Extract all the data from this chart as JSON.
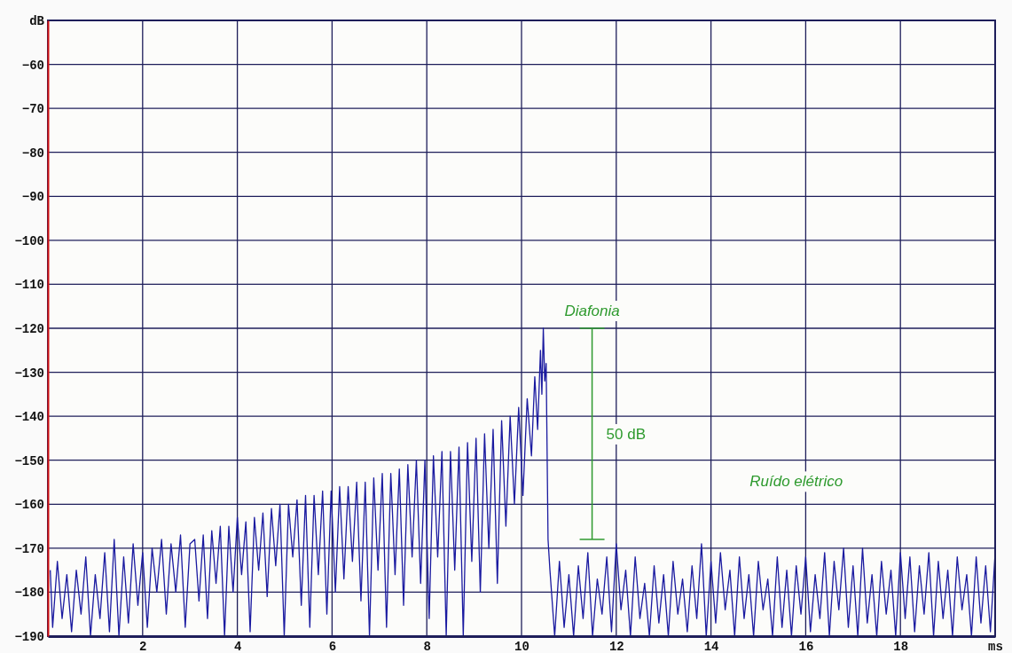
{
  "chart_data": {
    "type": "line",
    "xlim": [
      0,
      20
    ],
    "ylim": [
      -190,
      -50
    ],
    "xticks": [
      2,
      4,
      6,
      8,
      10,
      12,
      14,
      16,
      18,
      {
        "value": 20,
        "label": "ms"
      }
    ],
    "yticks": [
      {
        "value": -50,
        "label": "dB"
      },
      -60,
      -70,
      -80,
      -90,
      -100,
      -110,
      -120,
      -130,
      -140,
      -150,
      -160,
      -170,
      -180,
      -190
    ],
    "grid": true,
    "annotations": [
      "Diafonia",
      "50 dB",
      "Ruído elétrico"
    ],
    "series": [
      {
        "color": "#1a1aa0",
        "x": [
          0.05,
          0.1,
          0.2,
          0.3,
          0.4,
          0.5,
          0.6,
          0.7,
          0.8,
          0.9,
          1.0,
          1.1,
          1.2,
          1.3,
          1.4,
          1.5,
          1.6,
          1.7,
          1.8,
          1.9,
          2.0,
          2.1,
          2.2,
          2.3,
          2.4,
          2.5,
          2.6,
          2.7,
          2.8,
          2.9,
          3.0,
          3.1,
          3.19,
          3.28,
          3.37,
          3.46,
          3.55,
          3.64,
          3.73,
          3.82,
          3.91,
          4.0,
          4.09,
          4.18,
          4.27,
          4.36,
          4.45,
          4.54,
          4.63,
          4.72,
          4.81,
          4.9,
          4.99,
          5.08,
          5.17,
          5.26,
          5.35,
          5.44,
          5.53,
          5.62,
          5.71,
          5.8,
          5.89,
          5.98,
          6.07,
          6.16,
          6.25,
          6.34,
          6.43,
          6.52,
          6.61,
          6.7,
          6.79,
          6.88,
          6.97,
          7.06,
          7.15,
          7.24,
          7.33,
          7.42,
          7.51,
          7.6,
          7.69,
          7.78,
          7.87,
          7.96,
          8.05,
          8.14,
          8.23,
          8.32,
          8.41,
          8.5,
          8.59,
          8.68,
          8.77,
          8.86,
          8.95,
          9.04,
          9.13,
          9.22,
          9.31,
          9.4,
          9.49,
          9.58,
          9.67,
          9.76,
          9.85,
          9.94,
          10.03,
          10.12,
          10.21,
          10.28,
          10.34,
          10.4,
          10.43,
          10.46,
          10.49,
          10.52,
          10.56,
          10.6,
          10.7,
          10.8,
          10.9,
          11.0,
          11.1,
          11.2,
          11.3,
          11.4,
          11.5,
          11.6,
          11.7,
          11.8,
          11.9,
          12.0,
          12.1,
          12.2,
          12.3,
          12.4,
          12.5,
          12.6,
          12.7,
          12.8,
          12.9,
          13.0,
          13.1,
          13.2,
          13.3,
          13.4,
          13.5,
          13.6,
          13.7,
          13.8,
          13.9,
          14.0,
          14.1,
          14.2,
          14.3,
          14.4,
          14.5,
          14.6,
          14.7,
          14.8,
          14.9,
          15.0,
          15.1,
          15.2,
          15.3,
          15.4,
          15.5,
          15.6,
          15.7,
          15.8,
          15.9,
          16.0,
          16.1,
          16.2,
          16.3,
          16.4,
          16.5,
          16.6,
          16.7,
          16.8,
          16.9,
          17.0,
          17.1,
          17.2,
          17.3,
          17.4,
          17.5,
          17.6,
          17.7,
          17.8,
          17.9,
          18.0,
          18.1,
          18.2,
          18.3,
          18.4,
          18.5,
          18.6,
          18.7,
          18.8,
          18.9,
          19.0,
          19.1,
          19.2,
          19.3,
          19.4,
          19.5,
          19.6,
          19.7,
          19.8,
          19.9,
          20.0
        ],
        "values": [
          -175,
          -188,
          -173,
          -186,
          -176,
          -189,
          -175,
          -185,
          -172,
          -190,
          -176,
          -186,
          -171,
          -189,
          -168,
          -190,
          -172,
          -187,
          -169,
          -183,
          -171,
          -188,
          -170,
          -180,
          -168,
          -185,
          -169,
          -180,
          -167,
          -188,
          -169,
          -168,
          -182,
          -167,
          -186,
          -166,
          -178,
          -165,
          -190,
          -165,
          -180,
          -163,
          -176,
          -164,
          -189,
          -163,
          -175,
          -162,
          -181,
          -161,
          -174,
          -160,
          -190,
          -160,
          -172,
          -159,
          -183,
          -158,
          -188,
          -158,
          -176,
          -157,
          -185,
          -157,
          -180,
          -156,
          -177,
          -156,
          -173,
          -155,
          -182,
          -155,
          -190,
          -154,
          -175,
          -153,
          -188,
          -153,
          -176,
          -152,
          -183,
          -151,
          -172,
          -150,
          -178,
          -150,
          -186,
          -149,
          -172,
          -148,
          -190,
          -148,
          -175,
          -147,
          -190,
          -146,
          -173,
          -145,
          -180,
          -144,
          -170,
          -143,
          -178,
          -141,
          -165,
          -140,
          -160,
          -138,
          -158,
          -136,
          -149,
          -131,
          -143,
          -125,
          -135,
          -120,
          -132,
          -128,
          -168,
          -175,
          -190,
          -173,
          -188,
          -176,
          -190,
          -174,
          -186,
          -171,
          -190,
          -177,
          -185,
          -172,
          -189,
          -169,
          -184,
          -175,
          -190,
          -172,
          -186,
          -178,
          -190,
          -174,
          -187,
          -176,
          -190,
          -173,
          -185,
          -177,
          -189,
          -174,
          -186,
          -169,
          -190,
          -173,
          -187,
          -171,
          -184,
          -175,
          -190,
          -172,
          -186,
          -176,
          -190,
          -173,
          -184,
          -177,
          -190,
          -172,
          -188,
          -175,
          -190,
          -174,
          -185,
          -172,
          -189,
          -176,
          -186,
          -171,
          -190,
          -173,
          -184,
          -170,
          -188,
          -174,
          -190,
          -170,
          -187,
          -176,
          -190,
          -173,
          -185,
          -175,
          -190,
          -171,
          -186,
          -172,
          -189,
          -174,
          -185,
          -171,
          -190,
          -173,
          -186,
          -175,
          -190,
          -172,
          -184,
          -176,
          -190,
          -172,
          -187,
          -174,
          -189,
          -171
        ]
      }
    ]
  }
}
